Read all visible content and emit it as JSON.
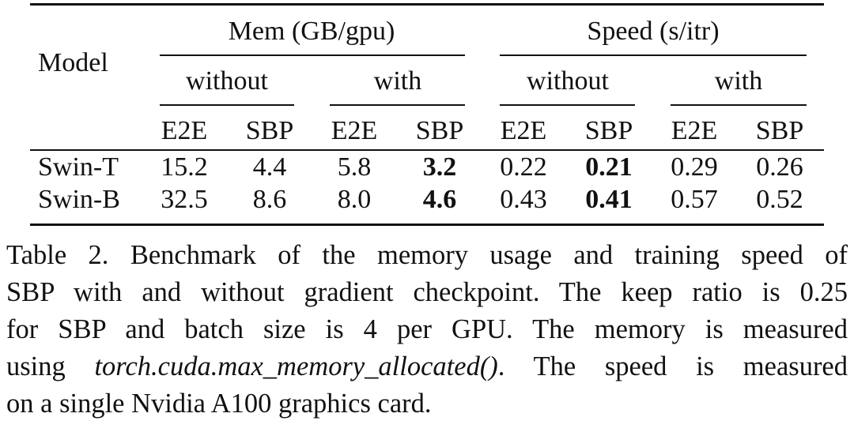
{
  "table": {
    "model_header": "Model",
    "groups": [
      {
        "label": "Mem (GB/gpu)",
        "sub": [
          {
            "label": "without"
          },
          {
            "label": "with"
          }
        ]
      },
      {
        "label": "Speed (s/itr)",
        "sub": [
          {
            "label": "without"
          },
          {
            "label": "with"
          }
        ]
      }
    ],
    "leaf_headers": [
      "E2E",
      "SBP",
      "E2E",
      "SBP",
      "E2E",
      "SBP",
      "E2E",
      "SBP"
    ],
    "rows": [
      {
        "model": "Swin-T",
        "values": [
          "15.2",
          "4.4",
          "5.8",
          "3.2",
          "0.22",
          "0.21",
          "0.29",
          "0.26"
        ],
        "bold": [
          false,
          false,
          false,
          true,
          false,
          true,
          false,
          false
        ]
      },
      {
        "model": "Swin-B",
        "values": [
          "32.5",
          "8.6",
          "8.0",
          "4.6",
          "0.43",
          "0.41",
          "0.57",
          "0.52"
        ],
        "bold": [
          false,
          false,
          false,
          true,
          false,
          true,
          false,
          false
        ]
      }
    ]
  },
  "caption": {
    "line1": "Table 2.  Benchmark of the memory usage and training speed of",
    "line2": "SBP with and without gradient checkpoint. The keep ratio is 0.25",
    "line3": "for SBP and batch size is 4 per GPU. The memory is measured",
    "line4_pre": "using ",
    "line4_code": "torch.cuda.max_memory_allocated()",
    "line4_post": ". The speed is measured",
    "line5": "on a single Nvidia A100 graphics card."
  }
}
